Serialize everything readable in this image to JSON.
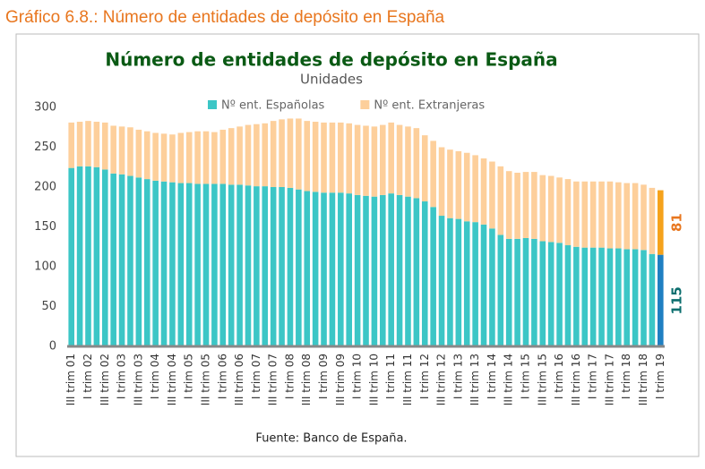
{
  "header": {
    "title": "Gráfico 6.8.:  Número de entidades de depósito en España"
  },
  "chart_data": {
    "type": "stacked-bar",
    "title": "Número de entidades de depósito en España",
    "subtitle": "Unidades",
    "source": "Fuente: Banco de España.",
    "categories": [
      "III trim 01",
      null,
      "I trim 02",
      null,
      "III trim 02",
      null,
      "I trim 03",
      null,
      "III trim 03",
      null,
      "I trim 04",
      null,
      "III trim 04",
      null,
      "I trim 05",
      null,
      "III trim 05",
      null,
      "I trim 06",
      null,
      "III trim 06",
      null,
      "I trim 07",
      null,
      "III trim 07",
      null,
      "I trim 08",
      null,
      "III trim 08",
      null,
      "I trim 09",
      null,
      "III trim 09",
      null,
      "I trim 10",
      null,
      "III trim 10",
      null,
      "I trim 11",
      null,
      "III trim 11",
      null,
      "I trim 12",
      null,
      "III trim 12",
      null,
      "I trim 13",
      null,
      "III trim 13",
      null,
      "I trim 14",
      null,
      "III trim 14",
      null,
      "I trim 15",
      null,
      "III trim 15",
      null,
      "I trim 16",
      null,
      "III trim 16",
      null,
      "I trim 17",
      null,
      "III trim 17",
      null,
      "I trim 18",
      null,
      "III trim 18",
      null,
      "I trim 19"
    ],
    "series": [
      {
        "name": "Nº ent. Españolas",
        "color": "#3cc6c6",
        "highlight_color": "#1f7fc2",
        "label_color": "#0b6e6e",
        "values": [
          224,
          226,
          226,
          225,
          222,
          217,
          216,
          214,
          212,
          210,
          208,
          207,
          206,
          205,
          205,
          204,
          204,
          204,
          204,
          203,
          203,
          202,
          201,
          201,
          200,
          200,
          199,
          197,
          195,
          194,
          193,
          193,
          193,
          192,
          190,
          189,
          188,
          190,
          192,
          190,
          188,
          186,
          182,
          175,
          164,
          161,
          160,
          157,
          156,
          153,
          148,
          140,
          135,
          135,
          136,
          135,
          132,
          131,
          130,
          127,
          125,
          124,
          124,
          124,
          123,
          123,
          122,
          122,
          121,
          116,
          115
        ]
      },
      {
        "name": "Nº ent. Extranjeras",
        "color": "#fdcf9b",
        "highlight_color": "#f5a21b",
        "label_color": "#e8761e",
        "values": [
          57,
          56,
          57,
          57,
          59,
          60,
          60,
          61,
          60,
          60,
          60,
          60,
          60,
          63,
          64,
          66,
          66,
          65,
          68,
          71,
          73,
          76,
          78,
          79,
          83,
          85,
          87,
          89,
          88,
          88,
          88,
          88,
          88,
          88,
          88,
          88,
          88,
          88,
          89,
          88,
          88,
          88,
          83,
          83,
          86,
          86,
          85,
          86,
          84,
          83,
          84,
          86,
          85,
          83,
          83,
          84,
          83,
          83,
          82,
          83,
          82,
          83,
          83,
          83,
          84,
          83,
          83,
          83,
          82,
          83,
          81
        ]
      }
    ],
    "ylim": [
      0,
      300
    ],
    "yticks": [
      0,
      50,
      100,
      150,
      200,
      250,
      300
    ],
    "grid": false,
    "legend": "top"
  }
}
